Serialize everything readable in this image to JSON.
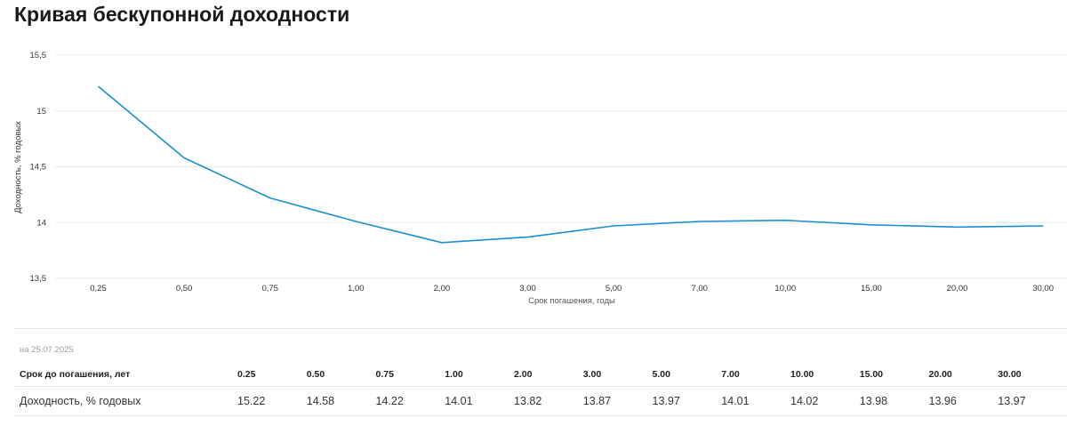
{
  "page": {
    "title": "Кривая бескупонной доходности"
  },
  "chart_data": {
    "type": "line",
    "categories": [
      "0,25",
      "0,50",
      "0,75",
      "1,00",
      "2,00",
      "3,00",
      "5,00",
      "7,00",
      "10,00",
      "15,00",
      "20,00",
      "30,00"
    ],
    "series": [
      {
        "values": [
          15.22,
          14.58,
          14.22,
          14.01,
          13.82,
          13.87,
          13.97,
          14.01,
          14.02,
          13.98,
          13.96,
          13.97
        ]
      }
    ],
    "yticks": [
      "15,5",
      "15",
      "14,5",
      "14",
      "13,5"
    ],
    "ylim": [
      13.5,
      15.5
    ],
    "xlabel": "Срок погашения, годы",
    "ylabel": "Доходность, % годовых",
    "grid": true,
    "legend": "none",
    "line_color": "#1a8fd1"
  },
  "table": {
    "date": "на 25.07.2025",
    "header_label": "Срок до погашения, лет",
    "terms": [
      "0.25",
      "0.50",
      "0.75",
      "1.00",
      "2.00",
      "3.00",
      "5.00",
      "7.00",
      "10.00",
      "15.00",
      "20.00",
      "30.00"
    ],
    "row_label": "Доходность, % годовых",
    "yields": [
      "15.22",
      "14.58",
      "14.22",
      "14.01",
      "13.82",
      "13.87",
      "13.97",
      "14.01",
      "14.02",
      "13.98",
      "13.96",
      "13.97"
    ]
  }
}
